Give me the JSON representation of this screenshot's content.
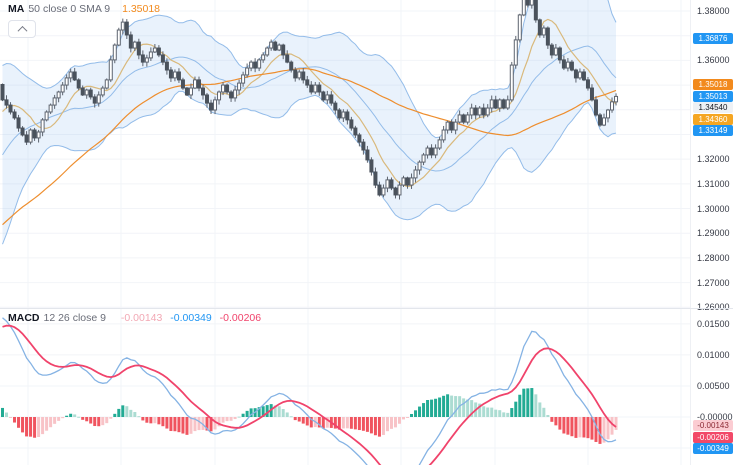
{
  "main_pane": {
    "legend": {
      "title": "MA",
      "params": "50 close 0 SMA 9",
      "value": "1.35018"
    },
    "price_axis": {
      "ticks": [
        {
          "label": "1.38000",
          "price": 1.38
        },
        {
          "label": "1.36000",
          "price": 1.36
        },
        {
          "label": "1.32000",
          "price": 1.32
        },
        {
          "label": "1.31000",
          "price": 1.31
        },
        {
          "label": "1.30000",
          "price": 1.3
        },
        {
          "label": "1.29000",
          "price": 1.29
        },
        {
          "label": "1.28000",
          "price": 1.28
        },
        {
          "label": "1.27000",
          "price": 1.27
        },
        {
          "label": "1.26000",
          "price": 1.26
        }
      ],
      "badges": [
        {
          "text": "1.36876",
          "price": 1.36876,
          "bg": "#2196f3",
          "fg": "#ffffff",
          "role": "bollinger-upper"
        },
        {
          "text": "1.35018",
          "price": 1.35018,
          "bg": "#f28a1d",
          "fg": "#ffffff",
          "role": "ma-50"
        },
        {
          "text": "1.35013",
          "price": 1.35013,
          "bg": "#2196f3",
          "fg": "#ffffff",
          "role": "bollinger-basis"
        },
        {
          "text": "1.34540",
          "price": 1.3454,
          "bg": "#eef1f5",
          "fg": "#131722",
          "role": "last-price"
        },
        {
          "text": "1.34360",
          "price": 1.3436,
          "bg": "#f5a623",
          "fg": "#ffffff",
          "role": "sma-9-smoothing"
        },
        {
          "text": "1.33149",
          "price": 1.33149,
          "bg": "#2196f3",
          "fg": "#ffffff",
          "role": "bollinger-lower"
        }
      ]
    }
  },
  "macd_pane": {
    "legend": {
      "title": "MACD",
      "params": "12 26 close 9",
      "values": [
        {
          "text": "-0.00143",
          "color": "#f2a8b4"
        },
        {
          "text": "-0.00349",
          "color": "#2196f3"
        },
        {
          "text": "-0.00206",
          "color": "#f0436b"
        }
      ]
    },
    "value_axis": {
      "ticks": [
        {
          "label": "0.01500",
          "value": 0.015
        },
        {
          "label": "0.01000",
          "value": 0.01
        },
        {
          "label": "0.00500",
          "value": 0.005
        },
        {
          "label": "-0.00000",
          "value": 0
        }
      ],
      "badges": [
        {
          "text": "-0.00143",
          "value": -0.00143,
          "bg": "#fbccd2",
          "fg": "#8c2a35",
          "role": "macd-histogram"
        },
        {
          "text": "-0.00206",
          "value": -0.00206,
          "bg": "#f24968",
          "fg": "#ffffff",
          "role": "macd-signal"
        },
        {
          "text": "-0.00349",
          "value": -0.00349,
          "bg": "#2196f3",
          "fg": "#ffffff",
          "role": "macd-line"
        }
      ]
    }
  },
  "chart_data": [
    {
      "type": "candlestick",
      "pane": "main",
      "price_axis_range": [
        1.26,
        1.385
      ],
      "closes": [
        1.344,
        1.3419,
        1.3391,
        1.3367,
        1.3326,
        1.3298,
        1.3269,
        1.3318,
        1.3286,
        1.331,
        1.3359,
        1.3391,
        1.3419,
        1.3448,
        1.3472,
        1.35,
        1.3529,
        1.3553,
        1.3521,
        1.3488,
        1.346,
        1.348,
        1.3452,
        1.3427,
        1.346,
        1.3488,
        1.3521,
        1.3602,
        1.3662,
        1.3723,
        1.3755,
        1.3703,
        1.365,
        1.3674,
        1.3622,
        1.3593,
        1.361,
        1.3634,
        1.365,
        1.3622,
        1.3593,
        1.3561,
        1.3529,
        1.3553,
        1.3521,
        1.3488,
        1.346,
        1.3488,
        1.3521,
        1.3488,
        1.346,
        1.3427,
        1.3399,
        1.344,
        1.3472,
        1.35,
        1.3472,
        1.3448,
        1.348,
        1.3508,
        1.3541,
        1.3569,
        1.3593,
        1.3569,
        1.3602,
        1.3622,
        1.365,
        1.3674,
        1.3642,
        1.3662,
        1.3622,
        1.3593,
        1.3561,
        1.3529,
        1.3553,
        1.3521,
        1.35,
        1.3472,
        1.35,
        1.3472,
        1.344,
        1.346,
        1.3427,
        1.3399,
        1.3367,
        1.3391,
        1.3359,
        1.3326,
        1.3298,
        1.3269,
        1.3237,
        1.3197,
        1.3148,
        1.3095,
        1.3055,
        1.3083,
        1.3116,
        1.3083,
        1.3055,
        1.3095,
        1.3124,
        1.3095,
        1.3124,
        1.3156,
        1.3188,
        1.3217,
        1.3245,
        1.3217,
        1.3245,
        1.3278,
        1.3318,
        1.335,
        1.3318,
        1.335,
        1.3379,
        1.335,
        1.3379,
        1.3407,
        1.3379,
        1.3407,
        1.3379,
        1.3407,
        1.344,
        1.3407,
        1.344,
        1.3407,
        1.344,
        1.3581,
        1.3683,
        1.3784,
        1.3865,
        1.3824,
        1.3877,
        1.3764,
        1.3703,
        1.3731,
        1.3662,
        1.3622,
        1.365,
        1.3602,
        1.3569,
        1.3593,
        1.3561,
        1.3529,
        1.3553,
        1.3521,
        1.3488,
        1.344,
        1.3379,
        1.3338,
        1.3367,
        1.3399,
        1.3432,
        1.3454
      ],
      "last_price": 1.3454,
      "overlays": [
        {
          "name": "Bollinger Bands",
          "period": 20,
          "stddev": 2,
          "upper": 1.36876,
          "basis": 1.35013,
          "lower": 1.33149
        },
        {
          "name": "MA",
          "period": 50,
          "source": "close",
          "offset": 0,
          "smoothing": "SMA 9",
          "value": 1.35018,
          "smoothing_value": 1.3436
        }
      ]
    },
    {
      "type": "macd",
      "pane": "bottom",
      "fast": 12,
      "slow": 26,
      "source": "close",
      "signal_period": 9,
      "histogram_value": -0.00143,
      "macd_value": -0.00349,
      "signal_value": -0.00206,
      "axis_ticks": [
        0.015,
        0.01,
        0.005,
        0
      ]
    }
  ],
  "colors": {
    "candle_up_fill": "#ffffff",
    "candle_up_stroke": "#5d646f",
    "candle_down": "#4a525c",
    "wick": "#5d646f",
    "bollinger_line": "#93bce9",
    "bollinger_fill": "rgba(144,191,238,0.20)",
    "ma50": "#ee8e2e",
    "sma9": "#d9b97c",
    "macd_line": "#85b3e4",
    "macd_signal": "#f0436b",
    "hist_pos": "#22ab94",
    "hist_pos_light": "#abdcd2",
    "hist_neg": "#f0545f",
    "hist_neg_light": "#f8c3c7",
    "grid": "#f2f4f8"
  }
}
